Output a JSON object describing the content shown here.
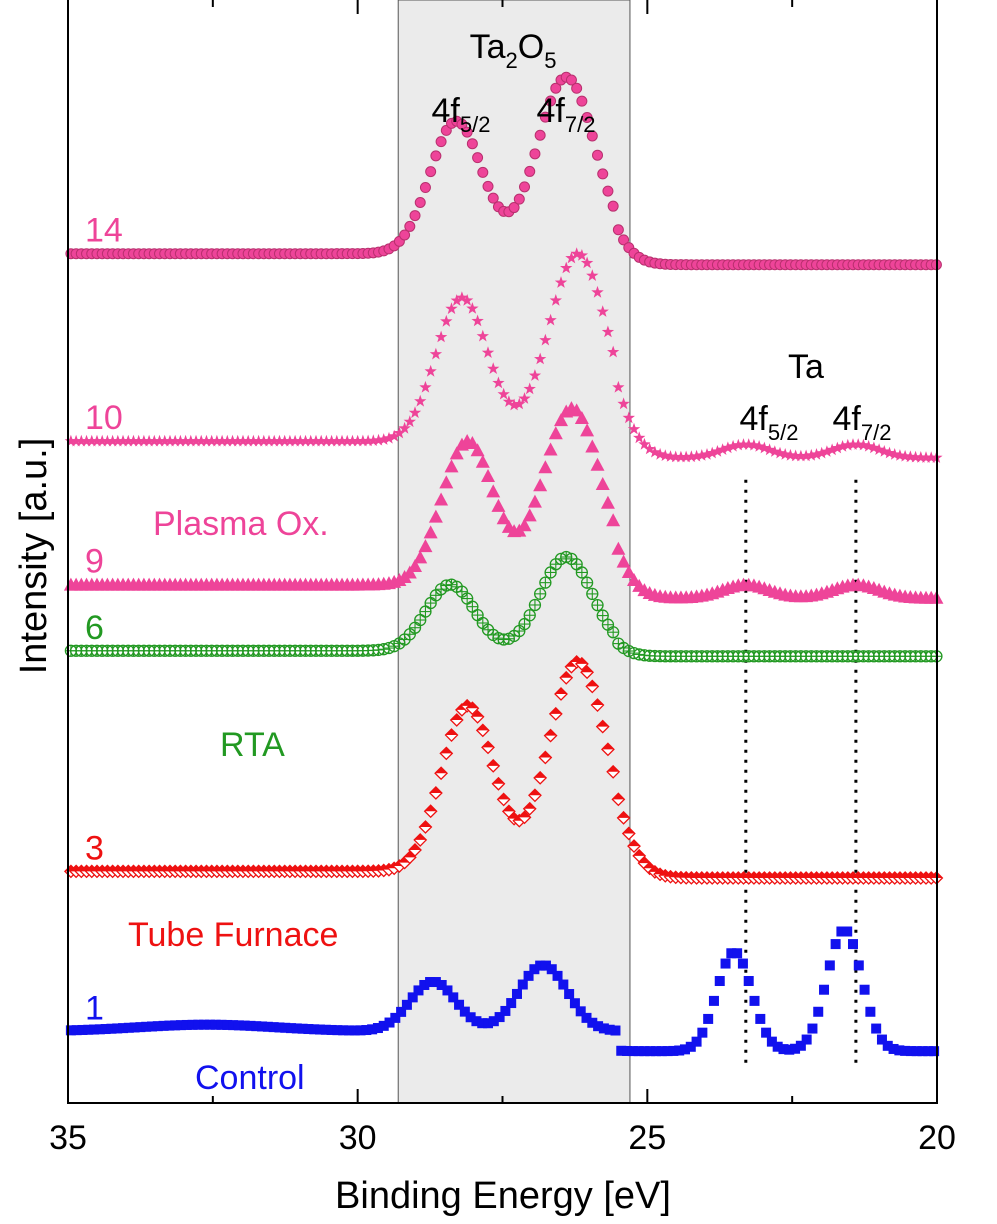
{
  "chart_data": {
    "type": "scatter",
    "xlabel": "Binding Energy [eV]",
    "ylabel": "Intensity [a.u.]",
    "xlim": [
      35,
      20
    ],
    "x_reversed": true,
    "xticks": [
      35,
      30,
      25,
      20
    ],
    "xtick_labels": [
      "35",
      "30",
      "25",
      "20"
    ],
    "grid": false,
    "shaded_region": {
      "x_range": [
        29.3,
        25.3
      ],
      "color": "#ebebeb"
    },
    "annotations": {
      "oxide": {
        "base": "Ta",
        "sub1": "2",
        "mid": "O",
        "sub2": "5"
      },
      "oxide_peaks": [
        {
          "base": "4f",
          "sub": "5/2"
        },
        {
          "base": "4f",
          "sub": "7/2"
        }
      ],
      "metal": "Ta",
      "metal_peaks": [
        {
          "base": "4f",
          "sub": "5/2"
        },
        {
          "base": "4f",
          "sub": "7/2"
        }
      ],
      "metal_lines_x": [
        23.3,
        21.4
      ]
    },
    "group_labels": [
      {
        "text": "Plasma Ox.",
        "color": "#ee4499"
      },
      {
        "text": "RTA",
        "color": "#229922"
      },
      {
        "text": "Tube Furnace",
        "color": "#ee1111"
      },
      {
        "text": "Control",
        "color": "#1111ee"
      }
    ],
    "series": [
      {
        "name": "14",
        "color": "#ee4499",
        "marker": "sphere",
        "offset": 0.77,
        "oxide_peaks": [
          [
            28.3,
            0.12,
            0.45
          ],
          [
            26.4,
            0.16,
            0.5
          ]
        ],
        "metal_peaks": [],
        "baseline_hi": 0.0,
        "baseline_lo": -0.01,
        "slope": 0.0
      },
      {
        "name": "10",
        "color": "#ee4499",
        "marker": "star",
        "offset": 0.6,
        "oxide_peaks": [
          [
            28.2,
            0.13,
            0.45
          ],
          [
            26.2,
            0.17,
            0.5
          ]
        ],
        "metal_peaks": [
          [
            23.3,
            0.012,
            0.4
          ],
          [
            21.4,
            0.012,
            0.4
          ]
        ],
        "baseline_hi": 0.0,
        "baseline_lo": -0.015,
        "slope": 0.0
      },
      {
        "name": "9",
        "color": "#ee4499",
        "marker": "triangle",
        "offset": 0.47,
        "oxide_peaks": [
          [
            28.1,
            0.13,
            0.45
          ],
          [
            26.3,
            0.16,
            0.5
          ]
        ],
        "metal_peaks": [
          [
            23.3,
            0.012,
            0.4
          ],
          [
            21.4,
            0.012,
            0.4
          ]
        ],
        "baseline_hi": 0.0,
        "baseline_lo": -0.012,
        "slope": 0.0
      },
      {
        "name": "6",
        "color": "#229922",
        "marker": "circle-plus",
        "offset": 0.41,
        "oxide_peaks": [
          [
            28.4,
            0.06,
            0.42
          ],
          [
            26.4,
            0.085,
            0.45
          ]
        ],
        "metal_peaks": [],
        "baseline_hi": 0.0,
        "baseline_lo": -0.005,
        "slope": 0.0
      },
      {
        "name": "3",
        "color": "#ee1111",
        "marker": "diamond",
        "offset": 0.21,
        "oxide_peaks": [
          [
            28.1,
            0.15,
            0.45
          ],
          [
            26.2,
            0.19,
            0.5
          ]
        ],
        "metal_peaks": [],
        "baseline_hi": 0.0,
        "baseline_lo": -0.006,
        "slope": 0.0
      },
      {
        "name": "1",
        "color": "#1111ee",
        "marker": "square",
        "offset": 0.065,
        "oxide_peaks": [
          [
            28.7,
            0.045,
            0.4
          ],
          [
            26.8,
            0.06,
            0.42
          ]
        ],
        "metal_peaks": [
          [
            23.5,
            0.09,
            0.3
          ],
          [
            21.6,
            0.11,
            0.3
          ]
        ],
        "broad_peak": [
          32.6,
          0.006,
          1.2
        ],
        "baseline_hi": 0.0,
        "baseline_lo": -0.018,
        "slope": 0.0
      }
    ]
  }
}
